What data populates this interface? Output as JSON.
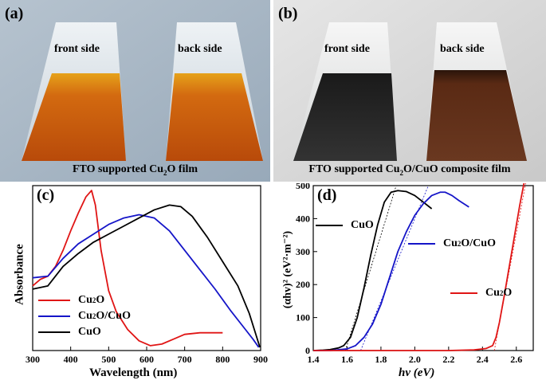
{
  "panels": {
    "a": {
      "label": "(a)",
      "left_film_text": "front side",
      "right_film_text": "back side",
      "caption_prefix": "FTO supported Cu",
      "caption_sub": "2",
      "caption_suffix": "O film"
    },
    "b": {
      "label": "(b)",
      "left_film_text": "front side",
      "right_film_text": "back side",
      "caption_prefix": "FTO supported Cu",
      "caption_sub": "2",
      "caption_suffix": "O/CuO composite film"
    }
  },
  "colors": {
    "photo_a_bg": "#a9b8c6",
    "photo_b_bg": "#d9d9d9",
    "cu2o_film": "#c9520a",
    "cuo_film": "#2a2a2a",
    "composite_back": "#5a2a14",
    "cu2o_line": "#e01515",
    "composite_line": "#1515c8",
    "cuo_line": "#000000"
  },
  "chart_data": [
    {
      "type": "line",
      "label": "(c)",
      "xlabel": "Wavelength (nm)",
      "ylabel": "Absorbance",
      "xlim": [
        300,
        900
      ],
      "xticks": [
        300,
        400,
        500,
        600,
        700,
        800,
        900
      ],
      "series": [
        {
          "name": "Cu2O",
          "name_main": "Cu",
          "name_sub": "2",
          "name_tail": "O",
          "color": "#e01515",
          "x": [
            300,
            320,
            340,
            360,
            380,
            400,
            420,
            440,
            455,
            465,
            480,
            500,
            520,
            550,
            580,
            610,
            640,
            670,
            700,
            740,
            770,
            800
          ],
          "y": [
            0.4,
            0.44,
            0.46,
            0.52,
            0.62,
            0.74,
            0.85,
            0.95,
            0.99,
            0.9,
            0.62,
            0.37,
            0.24,
            0.13,
            0.06,
            0.03,
            0.04,
            0.07,
            0.1,
            0.11,
            0.11,
            0.11
          ]
        },
        {
          "name": "Cu2O/CuO",
          "name_main": "Cu",
          "name_sub": "2",
          "name_tail": "O/CuO",
          "color": "#1515c8",
          "x": [
            300,
            340,
            380,
            420,
            460,
            500,
            540,
            580,
            620,
            660,
            700,
            740,
            780,
            820,
            860,
            880,
            895
          ],
          "y": [
            0.45,
            0.46,
            0.57,
            0.66,
            0.72,
            0.78,
            0.82,
            0.84,
            0.82,
            0.74,
            0.62,
            0.5,
            0.38,
            0.25,
            0.13,
            0.07,
            0.02
          ]
        },
        {
          "name": "CuO",
          "color": "#000000",
          "x": [
            300,
            340,
            380,
            420,
            460,
            500,
            540,
            580,
            620,
            660,
            690,
            720,
            760,
            800,
            840,
            870,
            890,
            898
          ],
          "y": [
            0.38,
            0.4,
            0.52,
            0.6,
            0.67,
            0.72,
            0.77,
            0.82,
            0.87,
            0.9,
            0.89,
            0.83,
            0.7,
            0.55,
            0.4,
            0.23,
            0.08,
            0.02
          ]
        }
      ]
    },
    {
      "type": "line",
      "label": "(d)",
      "xlabel": "hv (eV)",
      "ylabel": "(αhv)² (eV²·m⁻²)",
      "xlim": [
        1.4,
        2.7
      ],
      "ylim": [
        0,
        500
      ],
      "xticks": [
        1.4,
        1.6,
        1.8,
        2.0,
        2.2,
        2.4,
        2.6
      ],
      "yticks": [
        0,
        100,
        200,
        300,
        400,
        500
      ],
      "series": [
        {
          "name": "CuO",
          "color": "#000000",
          "x": [
            1.4,
            1.45,
            1.5,
            1.55,
            1.58,
            1.62,
            1.66,
            1.7,
            1.74,
            1.78,
            1.82,
            1.86,
            1.9,
            1.95,
            2.0,
            2.05,
            2.1
          ],
          "y": [
            0,
            1,
            3,
            8,
            15,
            40,
            100,
            190,
            290,
            380,
            450,
            480,
            485,
            482,
            470,
            450,
            430
          ]
        },
        {
          "name": "Cu2O/CuO",
          "name_main": "Cu",
          "name_sub": "2",
          "name_tail": "O/CuO",
          "color": "#1515c8",
          "x": [
            1.4,
            1.5,
            1.6,
            1.65,
            1.7,
            1.75,
            1.8,
            1.85,
            1.9,
            1.95,
            2.0,
            2.05,
            2.1,
            2.15,
            2.18,
            2.22,
            2.26,
            2.32
          ],
          "y": [
            0,
            0,
            5,
            15,
            40,
            80,
            140,
            220,
            300,
            360,
            410,
            445,
            470,
            480,
            480,
            470,
            455,
            435
          ]
        },
        {
          "name": "Cu2O",
          "name_main": "Cu",
          "name_sub": "2",
          "name_tail": "O",
          "color": "#e01515",
          "x": [
            1.4,
            1.6,
            1.8,
            2.0,
            2.2,
            2.35,
            2.42,
            2.46,
            2.48,
            2.5,
            2.53,
            2.56,
            2.59,
            2.62,
            2.65
          ],
          "y": [
            0,
            0,
            0,
            0,
            0,
            2,
            6,
            15,
            40,
            85,
            170,
            260,
            350,
            440,
            520
          ]
        }
      ],
      "tangents": [
        {
          "color": "#000000",
          "x": [
            1.59,
            1.89
          ],
          "y": [
            0,
            500
          ]
        },
        {
          "color": "#1515c8",
          "x": [
            1.68,
            2.08
          ],
          "y": [
            0,
            500
          ]
        },
        {
          "color": "#e01515",
          "x": [
            2.47,
            2.66
          ],
          "y": [
            0,
            520
          ]
        }
      ]
    }
  ]
}
